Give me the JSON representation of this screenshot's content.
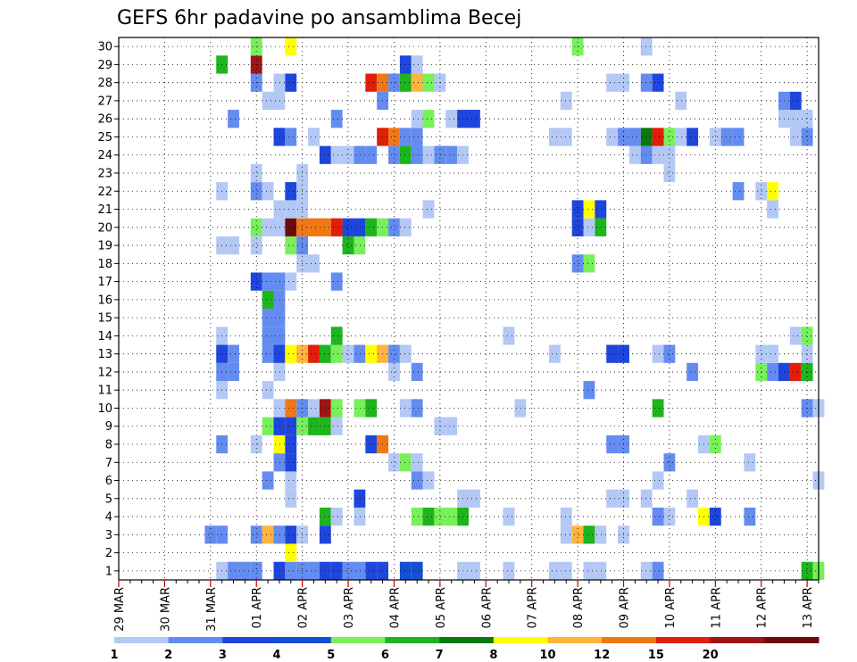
{
  "chart_data": {
    "type": "heatmap",
    "title": "GEFS 6hr padavine po ansamblima Becej",
    "x_tick_labels": [
      "29 MAR",
      "30 MAR",
      "31 MAR",
      "01 APR",
      "02 APR",
      "03 APR",
      "04 APR",
      "05 APR",
      "06 APR",
      "07 APR",
      "08 APR",
      "09 APR",
      "10 APR",
      "11 APR",
      "12 APR",
      "13 APR"
    ],
    "xlim": [
      0,
      61
    ],
    "y_tick_labels": [
      "1",
      "2",
      "3",
      "4",
      "5",
      "6",
      "7",
      "8",
      "9",
      "10",
      "11",
      "12",
      "13",
      "14",
      "15",
      "16",
      "17",
      "18",
      "19",
      "20",
      "21",
      "22",
      "23",
      "24",
      "25",
      "26",
      "27",
      "28",
      "29",
      "30"
    ],
    "ylim": [
      0.5,
      30.5
    ],
    "grid": true,
    "legend": {
      "position": "bottom",
      "levels": [
        1,
        2,
        3,
        4,
        5,
        6,
        7,
        8,
        10,
        12,
        15,
        20
      ],
      "colors": [
        "#b4c8f5",
        "#648cf0",
        "#1e46dc",
        "#1450d2",
        "#78f05a",
        "#1eb41e",
        "#0a780a",
        "#ffff00",
        "#ffb43c",
        "#f07814",
        "#e11e0a",
        "#a01414",
        "#6e0a0a"
      ]
    },
    "cells": [
      [
        9,
        1,
        1
      ],
      [
        10,
        1,
        2
      ],
      [
        11,
        1,
        2
      ],
      [
        12,
        1,
        2
      ],
      [
        19,
        1,
        3
      ],
      [
        20,
        1,
        2
      ],
      [
        22,
        1,
        3
      ],
      [
        23,
        1,
        3
      ],
      [
        14,
        1,
        3
      ],
      [
        15,
        1,
        2
      ],
      [
        16,
        1,
        2
      ],
      [
        17,
        1,
        2
      ],
      [
        18,
        1,
        3
      ],
      [
        21,
        1,
        2
      ],
      [
        25,
        1,
        4
      ],
      [
        26,
        1,
        4
      ],
      [
        30,
        1,
        1
      ],
      [
        31,
        1,
        1
      ],
      [
        34,
        1,
        1
      ],
      [
        38,
        1,
        1
      ],
      [
        39,
        1,
        1
      ],
      [
        41,
        1,
        1
      ],
      [
        42,
        1,
        1
      ],
      [
        46,
        1,
        1
      ],
      [
        47,
        1,
        2
      ],
      [
        60,
        1,
        6
      ],
      [
        61,
        1,
        5
      ],
      [
        15,
        2,
        8
      ],
      [
        8,
        3,
        2
      ],
      [
        9,
        3,
        2
      ],
      [
        12,
        3,
        2
      ],
      [
        13,
        3,
        9
      ],
      [
        14,
        3,
        2
      ],
      [
        15,
        3,
        3
      ],
      [
        16,
        3,
        1
      ],
      [
        18,
        3,
        3
      ],
      [
        39,
        3,
        1
      ],
      [
        40,
        3,
        9
      ],
      [
        41,
        3,
        6
      ],
      [
        42,
        3,
        1
      ],
      [
        44,
        3,
        1
      ],
      [
        18,
        4,
        6
      ],
      [
        19,
        4,
        1
      ],
      [
        21,
        4,
        1
      ],
      [
        26,
        4,
        5
      ],
      [
        27,
        4,
        6
      ],
      [
        28,
        4,
        5
      ],
      [
        29,
        4,
        5
      ],
      [
        30,
        4,
        6
      ],
      [
        34,
        4,
        1
      ],
      [
        39,
        4,
        1
      ],
      [
        47,
        4,
        2
      ],
      [
        48,
        4,
        1
      ],
      [
        51,
        4,
        8
      ],
      [
        52,
        4,
        3
      ],
      [
        55,
        4,
        2
      ],
      [
        15,
        5,
        1
      ],
      [
        21,
        5,
        3
      ],
      [
        30,
        5,
        1
      ],
      [
        31,
        5,
        1
      ],
      [
        43,
        5,
        1
      ],
      [
        44,
        5,
        1
      ],
      [
        46,
        5,
        1
      ],
      [
        50,
        5,
        1
      ],
      [
        13,
        6,
        2
      ],
      [
        15,
        6,
        1
      ],
      [
        26,
        6,
        2
      ],
      [
        27,
        6,
        1
      ],
      [
        47,
        6,
        1
      ],
      [
        61,
        6,
        1
      ],
      [
        14,
        7,
        2
      ],
      [
        15,
        7,
        3
      ],
      [
        24,
        7,
        1
      ],
      [
        25,
        7,
        5
      ],
      [
        26,
        7,
        1
      ],
      [
        48,
        7,
        2
      ],
      [
        55,
        7,
        1
      ],
      [
        9,
        8,
        2
      ],
      [
        12,
        8,
        1
      ],
      [
        14,
        8,
        8
      ],
      [
        15,
        8,
        3
      ],
      [
        22,
        8,
        3
      ],
      [
        23,
        8,
        10
      ],
      [
        43,
        8,
        2
      ],
      [
        44,
        8,
        2
      ],
      [
        51,
        8,
        1
      ],
      [
        52,
        8,
        5
      ],
      [
        13,
        9,
        5
      ],
      [
        14,
        9,
        3
      ],
      [
        15,
        9,
        3
      ],
      [
        16,
        9,
        5
      ],
      [
        17,
        9,
        6
      ],
      [
        18,
        9,
        6
      ],
      [
        19,
        9,
        1
      ],
      [
        28,
        9,
        1
      ],
      [
        29,
        9,
        1
      ],
      [
        14,
        10,
        1
      ],
      [
        15,
        10,
        10
      ],
      [
        16,
        10,
        2
      ],
      [
        17,
        10,
        1
      ],
      [
        18,
        10,
        12
      ],
      [
        19,
        10,
        5
      ],
      [
        21,
        10,
        5
      ],
      [
        22,
        10,
        6
      ],
      [
        25,
        10,
        1
      ],
      [
        26,
        10,
        2
      ],
      [
        35,
        10,
        1
      ],
      [
        47,
        10,
        6
      ],
      [
        60,
        10,
        2
      ],
      [
        61,
        10,
        1
      ],
      [
        9,
        11,
        1
      ],
      [
        13,
        11,
        1
      ],
      [
        41,
        11,
        2
      ],
      [
        9,
        12,
        2
      ],
      [
        10,
        12,
        2
      ],
      [
        14,
        12,
        1
      ],
      [
        24,
        12,
        1
      ],
      [
        26,
        12,
        2
      ],
      [
        50,
        12,
        2
      ],
      [
        56,
        12,
        5
      ],
      [
        57,
        12,
        2
      ],
      [
        58,
        12,
        3
      ],
      [
        59,
        12,
        11
      ],
      [
        60,
        12,
        6
      ],
      [
        9,
        13,
        3
      ],
      [
        10,
        13,
        2
      ],
      [
        13,
        13,
        2
      ],
      [
        14,
        13,
        3
      ],
      [
        15,
        13,
        8
      ],
      [
        16,
        13,
        9
      ],
      [
        17,
        13,
        11
      ],
      [
        18,
        13,
        6
      ],
      [
        19,
        13,
        5
      ],
      [
        20,
        13,
        1
      ],
      [
        21,
        13,
        2
      ],
      [
        22,
        13,
        8
      ],
      [
        23,
        13,
        9
      ],
      [
        24,
        13,
        2
      ],
      [
        25,
        13,
        1
      ],
      [
        38,
        13,
        1
      ],
      [
        43,
        13,
        3
      ],
      [
        44,
        13,
        3
      ],
      [
        47,
        13,
        1
      ],
      [
        48,
        13,
        2
      ],
      [
        56,
        13,
        1
      ],
      [
        57,
        13,
        1
      ],
      [
        60,
        13,
        1
      ],
      [
        9,
        14,
        1
      ],
      [
        13,
        14,
        2
      ],
      [
        14,
        14,
        2
      ],
      [
        19,
        14,
        6
      ],
      [
        34,
        14,
        1
      ],
      [
        59,
        14,
        1
      ],
      [
        60,
        14,
        5
      ],
      [
        13,
        15,
        2
      ],
      [
        14,
        15,
        2
      ],
      [
        13,
        16,
        6
      ],
      [
        14,
        16,
        2
      ],
      [
        12,
        17,
        3
      ],
      [
        13,
        17,
        2
      ],
      [
        14,
        17,
        2
      ],
      [
        15,
        17,
        1
      ],
      [
        19,
        17,
        2
      ],
      [
        16,
        18,
        1
      ],
      [
        17,
        18,
        1
      ],
      [
        40,
        18,
        2
      ],
      [
        41,
        18,
        5
      ],
      [
        9,
        19,
        1
      ],
      [
        10,
        19,
        1
      ],
      [
        12,
        19,
        1
      ],
      [
        15,
        19,
        5
      ],
      [
        16,
        19,
        2
      ],
      [
        20,
        19,
        6
      ],
      [
        21,
        19,
        5
      ],
      [
        12,
        20,
        5
      ],
      [
        13,
        20,
        1
      ],
      [
        14,
        20,
        1
      ],
      [
        15,
        20,
        13
      ],
      [
        16,
        20,
        10
      ],
      [
        17,
        20,
        10
      ],
      [
        18,
        20,
        10
      ],
      [
        19,
        20,
        11
      ],
      [
        20,
        20,
        3
      ],
      [
        21,
        20,
        3
      ],
      [
        22,
        20,
        6
      ],
      [
        23,
        20,
        5
      ],
      [
        24,
        20,
        2
      ],
      [
        25,
        20,
        1
      ],
      [
        40,
        20,
        3
      ],
      [
        41,
        20,
        1
      ],
      [
        42,
        20,
        6
      ],
      [
        14,
        21,
        1
      ],
      [
        15,
        21,
        1
      ],
      [
        16,
        21,
        1
      ],
      [
        27,
        21,
        1
      ],
      [
        40,
        21,
        3
      ],
      [
        41,
        21,
        8
      ],
      [
        42,
        21,
        3
      ],
      [
        57,
        21,
        1
      ],
      [
        9,
        22,
        1
      ],
      [
        12,
        22,
        2
      ],
      [
        13,
        22,
        1
      ],
      [
        15,
        22,
        3
      ],
      [
        16,
        22,
        1
      ],
      [
        54,
        22,
        2
      ],
      [
        56,
        22,
        1
      ],
      [
        57,
        22,
        8
      ],
      [
        12,
        23,
        1
      ],
      [
        16,
        23,
        1
      ],
      [
        48,
        23,
        1
      ],
      [
        18,
        24,
        3
      ],
      [
        19,
        24,
        1
      ],
      [
        20,
        24,
        1
      ],
      [
        21,
        24,
        2
      ],
      [
        22,
        24,
        2
      ],
      [
        24,
        24,
        2
      ],
      [
        25,
        24,
        6
      ],
      [
        26,
        24,
        2
      ],
      [
        27,
        24,
        1
      ],
      [
        28,
        24,
        2
      ],
      [
        29,
        24,
        2
      ],
      [
        30,
        24,
        1
      ],
      [
        45,
        24,
        1
      ],
      [
        46,
        24,
        2
      ],
      [
        47,
        24,
        1
      ],
      [
        48,
        24,
        1
      ],
      [
        14,
        25,
        3
      ],
      [
        15,
        25,
        2
      ],
      [
        17,
        25,
        1
      ],
      [
        23,
        25,
        11
      ],
      [
        24,
        25,
        10
      ],
      [
        25,
        25,
        2
      ],
      [
        26,
        25,
        2
      ],
      [
        38,
        25,
        1
      ],
      [
        39,
        25,
        1
      ],
      [
        43,
        25,
        1
      ],
      [
        44,
        25,
        2
      ],
      [
        45,
        25,
        2
      ],
      [
        46,
        25,
        7
      ],
      [
        47,
        25,
        11
      ],
      [
        48,
        25,
        5
      ],
      [
        49,
        25,
        1
      ],
      [
        50,
        25,
        3
      ],
      [
        52,
        25,
        1
      ],
      [
        53,
        25,
        2
      ],
      [
        54,
        25,
        2
      ],
      [
        59,
        25,
        1
      ],
      [
        60,
        25,
        2
      ],
      [
        10,
        26,
        2
      ],
      [
        19,
        26,
        2
      ],
      [
        26,
        26,
        1
      ],
      [
        27,
        26,
        5
      ],
      [
        29,
        26,
        1
      ],
      [
        30,
        26,
        3
      ],
      [
        31,
        26,
        3
      ],
      [
        58,
        26,
        1
      ],
      [
        59,
        26,
        1
      ],
      [
        60,
        26,
        1
      ],
      [
        13,
        27,
        1
      ],
      [
        14,
        27,
        1
      ],
      [
        23,
        27,
        2
      ],
      [
        39,
        27,
        1
      ],
      [
        49,
        27,
        1
      ],
      [
        58,
        27,
        2
      ],
      [
        59,
        27,
        3
      ],
      [
        12,
        28,
        2
      ],
      [
        14,
        28,
        1
      ],
      [
        15,
        28,
        3
      ],
      [
        22,
        28,
        11
      ],
      [
        23,
        28,
        10
      ],
      [
        24,
        28,
        2
      ],
      [
        25,
        28,
        6
      ],
      [
        26,
        28,
        9
      ],
      [
        27,
        28,
        5
      ],
      [
        28,
        28,
        1
      ],
      [
        43,
        28,
        1
      ],
      [
        44,
        28,
        1
      ],
      [
        46,
        28,
        2
      ],
      [
        47,
        28,
        3
      ],
      [
        9,
        29,
        6
      ],
      [
        12,
        29,
        12
      ],
      [
        25,
        29,
        3
      ],
      [
        26,
        29,
        1
      ],
      [
        12,
        30,
        5
      ],
      [
        15,
        30,
        8
      ],
      [
        40,
        30,
        5
      ],
      [
        46,
        30,
        1
      ]
    ]
  }
}
